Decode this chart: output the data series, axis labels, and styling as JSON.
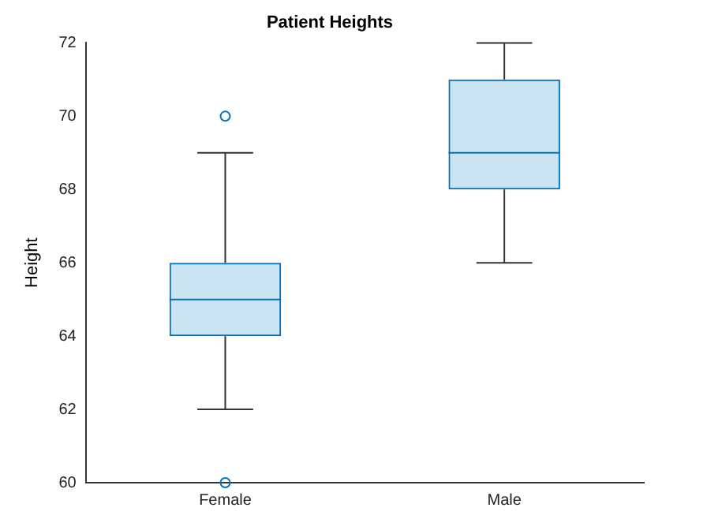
{
  "chart_data": {
    "type": "box",
    "title": "Patient Heights",
    "ylabel": "Height",
    "categories": [
      "Female",
      "Male"
    ],
    "color": "#0072bd",
    "boxes": [
      {
        "low": 62,
        "q1": 64,
        "median": 65,
        "q3": 66,
        "high": 69,
        "outliers": [
          60,
          70
        ]
      },
      {
        "low": 66,
        "q1": 68,
        "median": 69,
        "q3": 71,
        "high": 72
      }
    ],
    "ylim": [
      60,
      72
    ],
    "yticks": [
      60,
      62,
      64,
      66,
      68,
      70,
      72
    ],
    "grid": false,
    "legend": false,
    "marker": "circle"
  }
}
